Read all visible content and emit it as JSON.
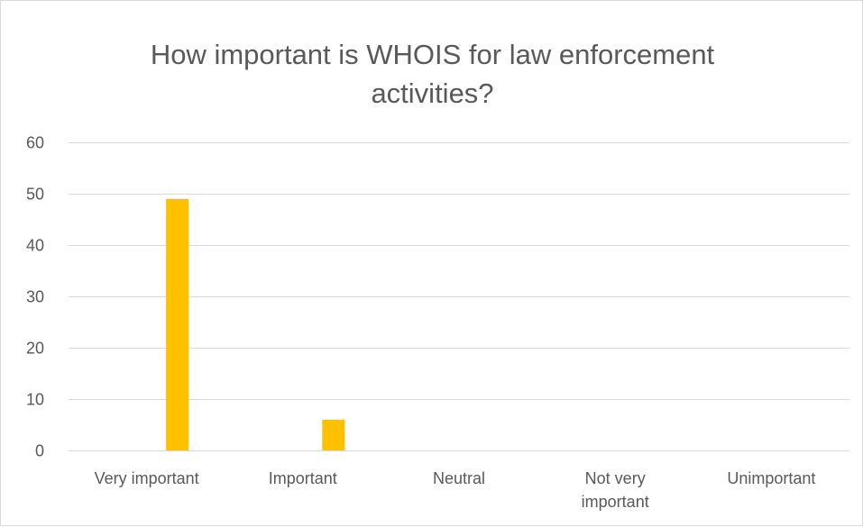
{
  "chart_data": {
    "type": "bar",
    "title_lines": [
      "How important is WHOIS for law enforcement",
      "activities?"
    ],
    "categories": [
      "Very important",
      "Important",
      "Neutral",
      "Not very important",
      "Unimportant"
    ],
    "category_lines": [
      [
        "Very important"
      ],
      [
        "Important"
      ],
      [
        "Neutral"
      ],
      [
        "Not very",
        "important"
      ],
      [
        "Unimportant"
      ]
    ],
    "values": [
      49,
      6,
      0,
      0,
      0
    ],
    "ylim": [
      0,
      60
    ],
    "yticks": [
      0,
      10,
      20,
      30,
      40,
      50,
      60
    ],
    "grid": true,
    "legend": "none",
    "bar_color": "#FFC000",
    "grid_color": "#D9D9D9"
  }
}
